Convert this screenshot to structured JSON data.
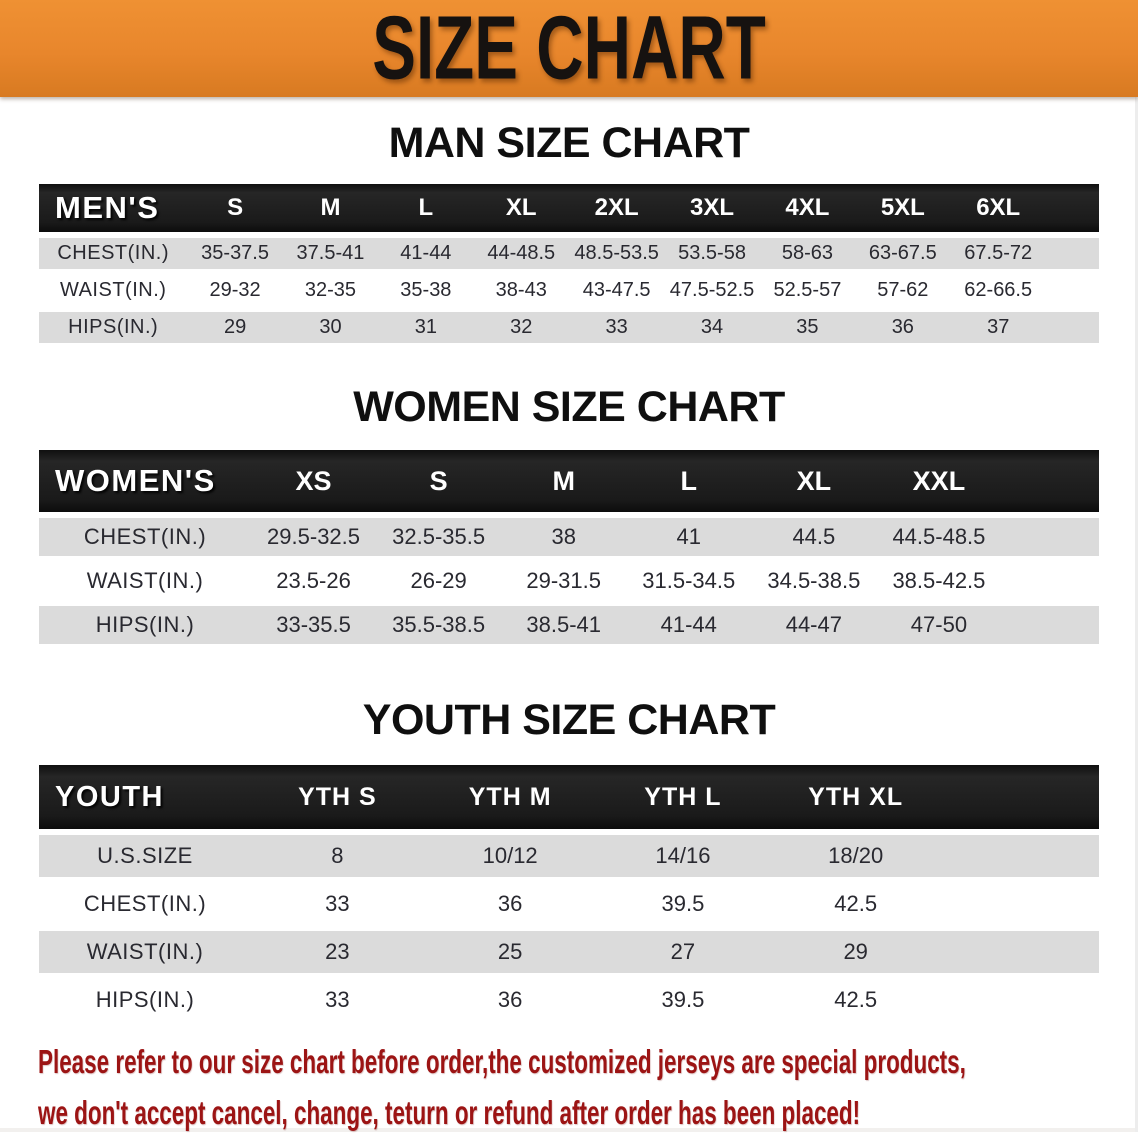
{
  "banner": {
    "title": "SIZE CHART"
  },
  "colors": {
    "banner_orange": "#e8862c",
    "header_bar_black": "#1a1a1a",
    "shaded_row_gray": "#dbdbdb",
    "disclaimer_red": "#9c1414",
    "title_black": "#0f0f0f"
  },
  "sections": [
    {
      "title": "MAN SIZE CHART",
      "corner_label": "MEN'S",
      "columns": [
        "S",
        "M",
        "L",
        "XL",
        "2XL",
        "3XL",
        "4XL",
        "5XL",
        "6XL"
      ],
      "rows": [
        {
          "label": "CHEST(IN.)",
          "values": [
            "35-37.5",
            "37.5-41",
            "41-44",
            "44-48.5",
            "48.5-53.5",
            "53.5-58",
            "58-63",
            "63-67.5",
            "67.5-72"
          ]
        },
        {
          "label": "WAIST(IN.)",
          "values": [
            "29-32",
            "32-35",
            "35-38",
            "38-43",
            "43-47.5",
            "47.5-52.5",
            "52.5-57",
            "57-62",
            "62-66.5"
          ]
        },
        {
          "label": "HIPS(IN.)",
          "values": [
            "29",
            "30",
            "31",
            "32",
            "33",
            "34",
            "35",
            "36",
            "37"
          ]
        }
      ]
    },
    {
      "title": "WOMEN SIZE CHART",
      "corner_label": "WOMEN'S",
      "columns": [
        "XS",
        "S",
        "M",
        "L",
        "XL",
        "XXL"
      ],
      "rows": [
        {
          "label": "CHEST(IN.)",
          "values": [
            "29.5-32.5",
            "32.5-35.5",
            "38",
            "41",
            "44.5",
            "44.5-48.5"
          ]
        },
        {
          "label": "WAIST(IN.)",
          "values": [
            "23.5-26",
            "26-29",
            "29-31.5",
            "31.5-34.5",
            "34.5-38.5",
            "38.5-42.5"
          ]
        },
        {
          "label": "HIPS(IN.)",
          "values": [
            "33-35.5",
            "35.5-38.5",
            "38.5-41",
            "41-44",
            "44-47",
            "47-50"
          ]
        }
      ]
    },
    {
      "title": "YOUTH SIZE CHART",
      "corner_label": "YOUTH",
      "columns": [
        "YTH S",
        "YTH M",
        "YTH L",
        "YTH XL"
      ],
      "rows": [
        {
          "label": "U.S.SIZE",
          "values": [
            "8",
            "10/12",
            "14/16",
            "18/20"
          ]
        },
        {
          "label": "CHEST(IN.)",
          "values": [
            "33",
            "36",
            "39.5",
            "42.5"
          ]
        },
        {
          "label": "WAIST(IN.)",
          "values": [
            "23",
            "25",
            "27",
            "29"
          ]
        },
        {
          "label": "HIPS(IN.)",
          "values": [
            "33",
            "36",
            "39.5",
            "42.5"
          ]
        }
      ]
    }
  ],
  "disclaimer": {
    "line1": "Please refer to our size chart before order,the customized jerseys are special products,",
    "line2": "we don't accept cancel, change, teturn or refund after order has been placed!"
  }
}
